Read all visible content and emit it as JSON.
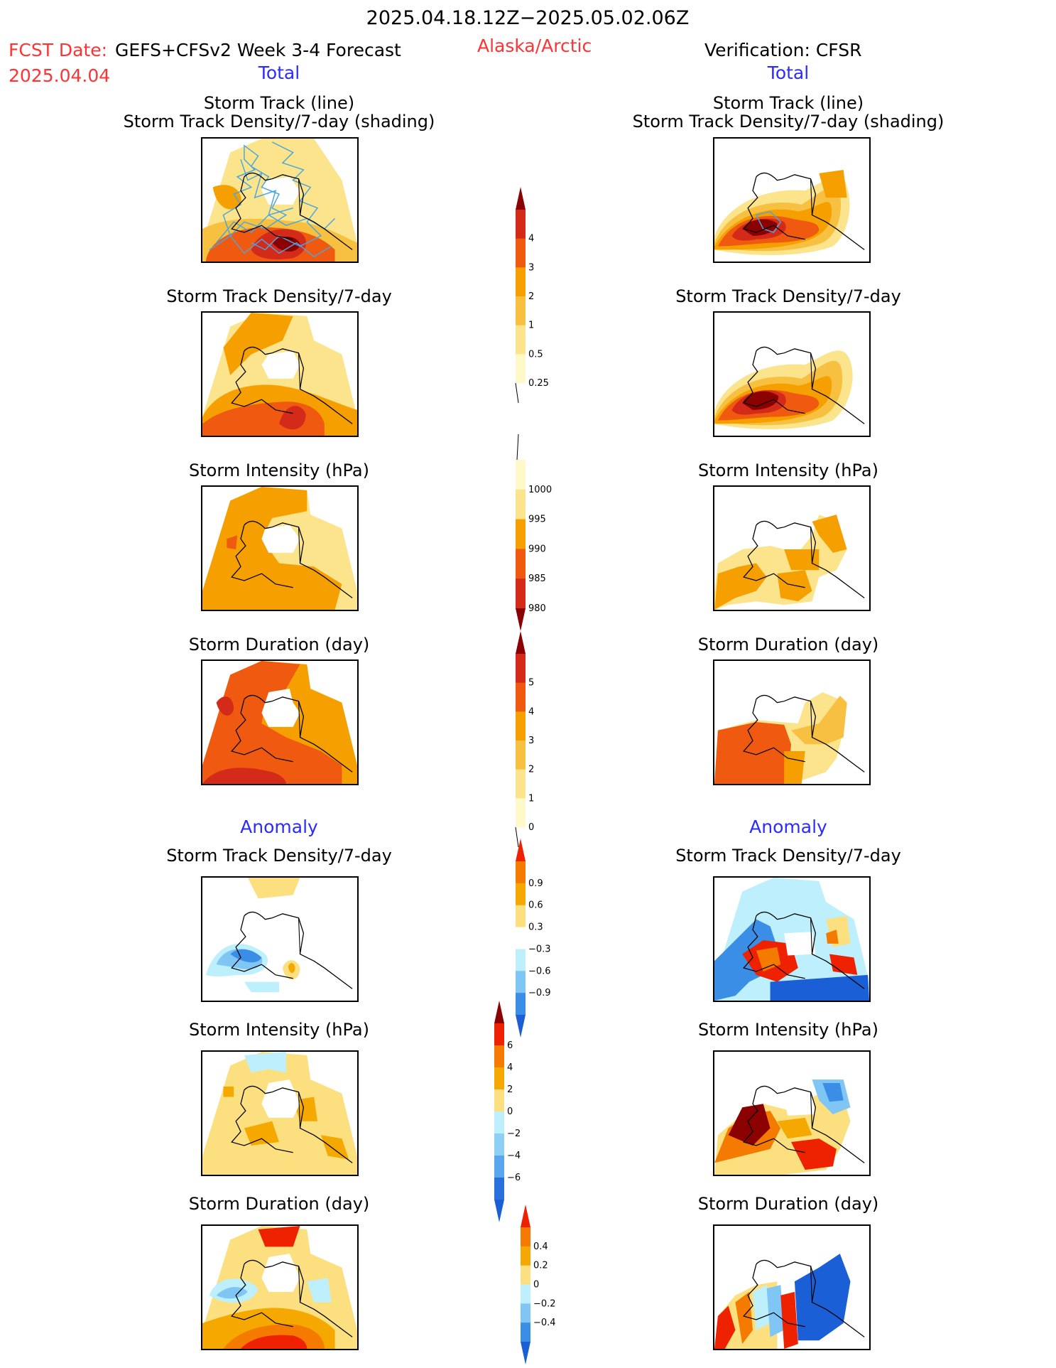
{
  "header": {
    "date_range": "2025.04.18.12Z−2025.05.02.06Z",
    "fcst_label": "FCST Date:",
    "fcst_model": "GEFS+CFSv2 Week 3-4 Forecast",
    "fcst_date": "2025.04.04",
    "region": "Alaska/Arctic",
    "verification": "Verification: CFSR",
    "left_total": "Total",
    "right_total": "Total",
    "left_anomaly": "Anomaly",
    "right_anomaly": "Anomaly"
  },
  "panels": {
    "track_line_title": "Storm Track (line)",
    "track_shading_title": "Storm Track Density/7-day (shading)",
    "density_title": "Storm Track Density/7-day",
    "intensity_title": "Storm Intensity (hPa)",
    "duration_title": "Storm Duration (day)"
  },
  "colorbars": {
    "density_total": {
      "labels": [
        "4",
        "3",
        "2",
        "1",
        "0.5",
        "0.25"
      ],
      "colors": [
        "#8b0000",
        "#d42a1a",
        "#f05a10",
        "#f5a000",
        "#f7c040",
        "#fbe48c",
        "#fff8c8"
      ]
    },
    "intensity_total": {
      "labels": [
        "1000",
        "995",
        "990",
        "985",
        "980"
      ],
      "colors": [
        "#fff8c8",
        "#fbe48c",
        "#f5a000",
        "#f05a10",
        "#d42a1a",
        "#8b0000"
      ]
    },
    "duration_total": {
      "labels": [
        "5",
        "4",
        "3",
        "2",
        "1",
        "0"
      ],
      "colors": [
        "#8b0000",
        "#d42a1a",
        "#f05a10",
        "#f5a000",
        "#f7c040",
        "#fbe48c",
        "#fff8c8"
      ]
    },
    "density_anom": {
      "labels": [
        "0.9",
        "0.6",
        "0.3",
        "−0.3",
        "−0.6",
        "−0.9"
      ],
      "colors": [
        "#ee2200",
        "#f57a00",
        "#f5a800",
        "#fce080",
        "#ffffff",
        "#bdf0fc",
        "#7fc6f5",
        "#3a8ee6",
        "#1a5fd6"
      ]
    },
    "intensity_anom": {
      "labels": [
        "6",
        "4",
        "2",
        "0",
        "−2",
        "−4",
        "−6"
      ],
      "colors": [
        "#8b0000",
        "#ee2200",
        "#f57a00",
        "#f5a800",
        "#fce080",
        "#bdf0fc",
        "#8ed0f5",
        "#5aa6ee",
        "#2a70dc",
        "#1a5fd6"
      ]
    },
    "duration_anom": {
      "labels": [
        "0.4",
        "0.2",
        "0",
        "−0.2",
        "−0.4"
      ],
      "colors": [
        "#ee2200",
        "#f57a00",
        "#f5a800",
        "#fce080",
        "#bdf0fc",
        "#7fc6f5",
        "#3a8ee6",
        "#1a5fd6"
      ]
    }
  }
}
